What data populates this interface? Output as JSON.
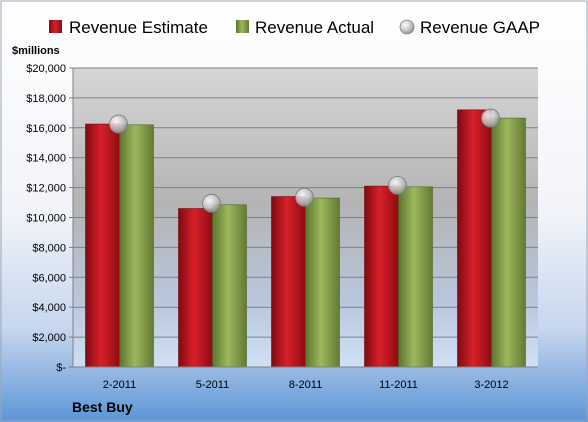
{
  "colors": {
    "estimate": "#c8141e",
    "actual": "#8aa44c",
    "gaap": "#c8c8c8"
  },
  "units_label": "$millions",
  "company": "Best Buy",
  "chart_data": {
    "type": "bar",
    "categories": [
      "2-2011",
      "5-2011",
      "8-2011",
      "11-2011",
      "3-2012"
    ],
    "series": [
      {
        "name": "Revenue Estimate",
        "values": [
          16250,
          10600,
          11400,
          12100,
          17200
        ]
      },
      {
        "name": "Revenue Actual",
        "values": [
          16200,
          10850,
          11300,
          12050,
          16650
        ]
      },
      {
        "name": "Revenue GAAP",
        "marker": "circle",
        "values": [
          16250,
          10950,
          11350,
          12150,
          16650
        ]
      }
    ],
    "ylim": [
      0,
      20000
    ],
    "yticks": [
      0,
      2000,
      4000,
      6000,
      8000,
      10000,
      12000,
      14000,
      16000,
      18000,
      20000
    ],
    "ytick_labels": [
      "$-",
      "$2,000",
      "$4,000",
      "$6,000",
      "$8,000",
      "$10,000",
      "$12,000",
      "$14,000",
      "$16,000",
      "$18,000",
      "$20,000"
    ],
    "legend": "top",
    "grid": true
  }
}
